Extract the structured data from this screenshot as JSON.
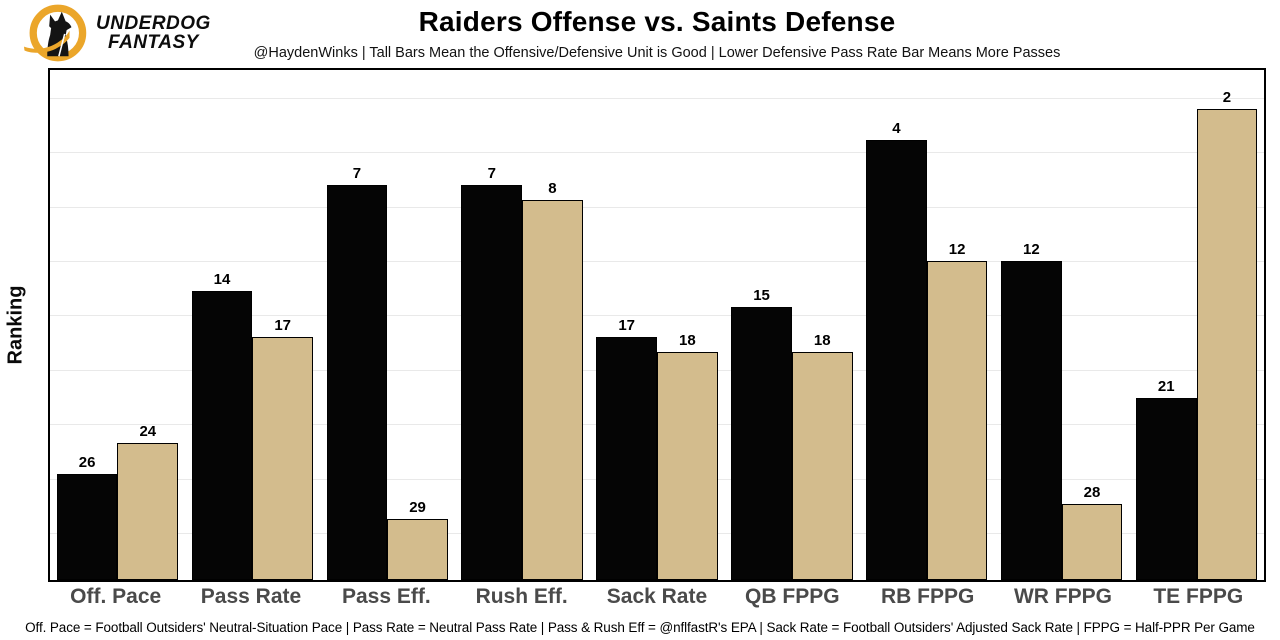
{
  "header": {
    "brand_line1": "UNDERDOG",
    "brand_line2": "FANTASY",
    "title": "Raiders Offense vs. Saints Defense",
    "subtitle": "@HaydenWinks | Tall Bars Mean the Offensive/Defensive Unit is Good | Lower Defensive Pass Rate Bar Means More Passes"
  },
  "footer": {
    "note": "Off. Pace = Football Outsiders' Neutral-Situation Pace | Pass Rate = Neutral Pass Rate | Pass & Rush Eff = @nflfastR's EPA | Sack Rate = Football Outsiders' Adjusted Sack Rate | FPPG = Half-PPR Per Game"
  },
  "colors": {
    "offense_bar": "#050505",
    "defense_bar": "#d3bc8d",
    "bar_outline": "#000000",
    "brand_gold": "#eba62a",
    "category_label": "#4a4a4a",
    "gridline": "#e9e9e9"
  },
  "chart_data": {
    "type": "bar",
    "title": "Raiders Offense vs. Saints Defense",
    "subtitle": "@HaydenWinks | Tall Bars Mean the Offensive/Defensive Unit is Good | Lower Defensive Pass Rate Bar Means More Passes",
    "xlabel": "",
    "ylabel": "Ranking",
    "categories": [
      "Off. Pace",
      "Pass Rate",
      "Pass Eff.",
      "Rush Eff.",
      "Sack Rate",
      "QB FPPG",
      "RB FPPG",
      "WR FPPG",
      "TE FPPG"
    ],
    "series": [
      {
        "name": "Raiders Offense",
        "color": "#050505",
        "values": [
          26,
          14,
          7,
          7,
          17,
          15,
          4,
          12,
          21
        ]
      },
      {
        "name": "Saints Defense",
        "color": "#d3bc8d",
        "values": [
          24,
          17,
          29,
          8,
          18,
          18,
          12,
          28,
          2
        ]
      }
    ],
    "value_labels": "NFL rank (1-32) printed above each bar",
    "bar_height_rule": "bar height is proportional to (33 - rank); lower rank = taller bar",
    "ylim_units": [
      0,
      33.6
    ],
    "y_tick_labels": "none",
    "grid": "horizontal light-gray lines",
    "legend_position": "none"
  }
}
